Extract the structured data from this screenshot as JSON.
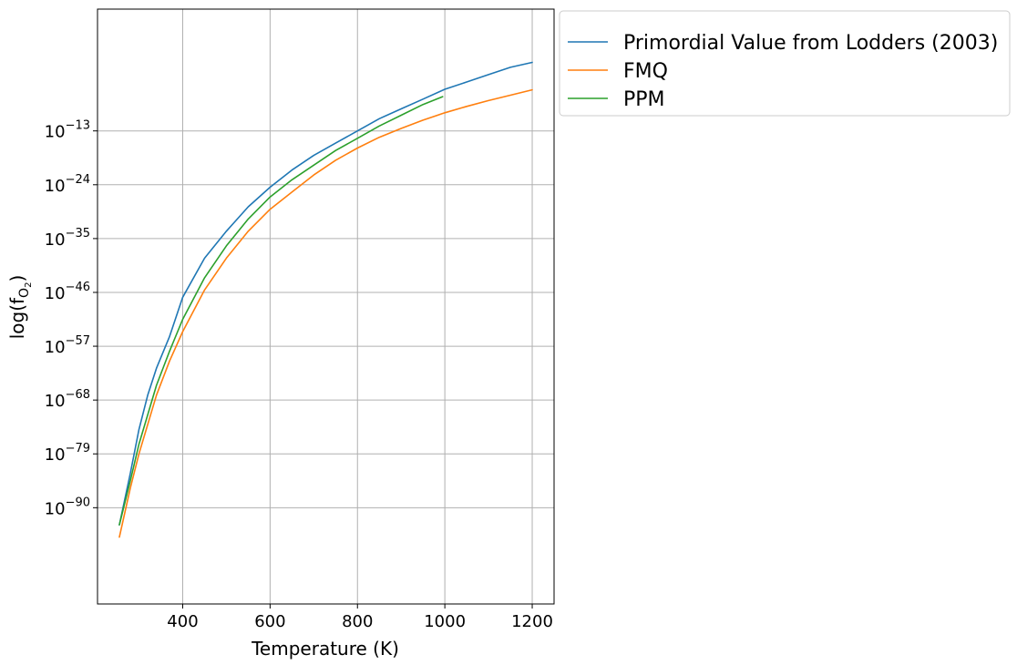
{
  "chart_data": {
    "type": "line",
    "title": "",
    "xlabel": "Temperature (K)",
    "ylabel": "log(f",
    "ylabel_sub": "O",
    "ylabel_subsub": "2",
    "ylabel_close": ")",
    "xlim": [
      205,
      1250
    ],
    "ylim": [
      -109.67,
      11.89
    ],
    "log_scale_y": true,
    "grid": true,
    "legend_position": "outside-upper-right",
    "x_ticks": [
      400,
      600,
      800,
      1000,
      1200
    ],
    "x_tick_labels": [
      "400",
      "600",
      "800",
      "1000",
      "1200"
    ],
    "y_ticks": [
      -13,
      -24,
      -35,
      -46,
      -57,
      -68,
      -79,
      -90
    ],
    "y_tick_base": "10",
    "y_tick_exponents": [
      "−13",
      "−24",
      "−35",
      "−46",
      "−57",
      "−68",
      "−79",
      "−90"
    ],
    "series": [
      {
        "name": "Primordial Value from Lodders (2003)",
        "color": "#1f77b4",
        "x": [
          255,
          280,
          300,
          320,
          340,
          370,
          400,
          450,
          500,
          550,
          600,
          650,
          700,
          750,
          800,
          850,
          900,
          950,
          1000,
          1050,
          1100,
          1150,
          1200
        ],
        "y": [
          -93.5,
          -83,
          -74,
          -67,
          -61.5,
          -55,
          -47,
          -39,
          -33.5,
          -28.5,
          -24.5,
          -21,
          -18,
          -15.5,
          -13,
          -10.5,
          -8.5,
          -6.5,
          -4.5,
          -3,
          -1.5,
          0,
          1
        ]
      },
      {
        "name": "FMQ",
        "color": "#ff7f0e",
        "x": [
          255,
          280,
          300,
          320,
          340,
          370,
          400,
          450,
          500,
          550,
          600,
          650,
          700,
          750,
          800,
          850,
          900,
          950,
          1000,
          1050,
          1100,
          1150,
          1200
        ],
        "y": [
          -96,
          -86,
          -79,
          -73,
          -67,
          -60,
          -54,
          -45.5,
          -39,
          -33.5,
          -29,
          -25.5,
          -22,
          -19,
          -16.5,
          -14.3,
          -12.5,
          -10.8,
          -9.3,
          -8,
          -6.8,
          -5.7,
          -4.6
        ]
      },
      {
        "name": "PPM",
        "color": "#2ca02c",
        "x": [
          255,
          280,
          300,
          320,
          340,
          370,
          400,
          450,
          500,
          550,
          600,
          650,
          700,
          750,
          800,
          850,
          900,
          950,
          995
        ],
        "y": [
          -93.5,
          -84.5,
          -77,
          -71,
          -65,
          -58,
          -51.5,
          -43,
          -36.5,
          -31,
          -26.5,
          -23,
          -20,
          -17,
          -14.5,
          -12,
          -9.8,
          -7.6,
          -6
        ]
      }
    ]
  }
}
